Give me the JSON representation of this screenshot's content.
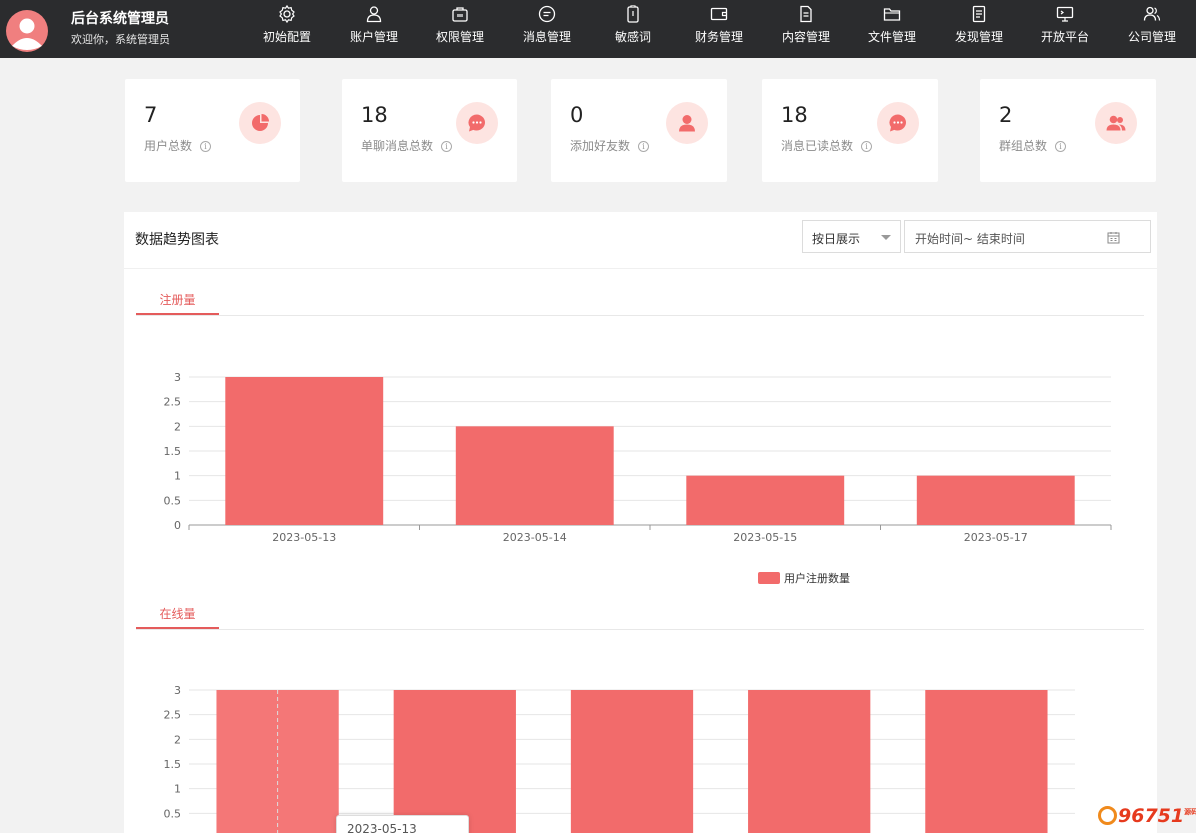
{
  "header": {
    "title": "后台系统管理员",
    "welcome": "欢迎你，系统管理员",
    "nav": [
      {
        "label": "初始配置",
        "icon": "gear-icon"
      },
      {
        "label": "账户管理",
        "icon": "user-icon"
      },
      {
        "label": "权限管理",
        "icon": "permission-icon"
      },
      {
        "label": "消息管理",
        "icon": "message-icon"
      },
      {
        "label": "敏感词",
        "icon": "clipboard-icon"
      },
      {
        "label": "财务管理",
        "icon": "wallet-icon"
      },
      {
        "label": "内容管理",
        "icon": "document-icon"
      },
      {
        "label": "文件管理",
        "icon": "folder-icon"
      },
      {
        "label": "发现管理",
        "icon": "file-list-icon"
      },
      {
        "label": "开放平台",
        "icon": "monitor-icon"
      },
      {
        "label": "公司管理",
        "icon": "users-icon"
      }
    ]
  },
  "stats": [
    {
      "value": "7",
      "label": "用户总数",
      "icon": "pie-chart-icon"
    },
    {
      "value": "18",
      "label": "单聊消息总数",
      "icon": "chat-bubble-icon"
    },
    {
      "value": "0",
      "label": "添加好友数",
      "icon": "person-icon"
    },
    {
      "value": "18",
      "label": "消息已读总数",
      "icon": "chat-bubble-icon"
    },
    {
      "value": "2",
      "label": "群组总数",
      "icon": "group-icon"
    }
  ],
  "panel": {
    "title": "数据趋势图表",
    "display_mode": "按日展示",
    "date_range_placeholder": "开始时间~ 结束时间"
  },
  "tabs": {
    "registrations": "注册量",
    "online": "在线量"
  },
  "colors": {
    "topbar": "#2b2c2e",
    "accent": "#e45b5b",
    "bar": "#f26b6b",
    "icon_bg": "#fde4e1"
  },
  "chart_data": [
    {
      "type": "bar",
      "categories": [
        "2023-05-13",
        "2023-05-14",
        "2023-05-15",
        "2023-05-17"
      ],
      "series": [
        {
          "name": "用户注册数量",
          "values": [
            3,
            2,
            1,
            1
          ]
        }
      ],
      "ylim": [
        0,
        3
      ],
      "yticks": [
        "0",
        "0.5",
        "1",
        "1.5",
        "2",
        "2.5",
        "3"
      ],
      "legend": "bottom-center",
      "grid": true
    },
    {
      "type": "bar",
      "categories": [
        "2023-05-13",
        "",
        "",
        "",
        ""
      ],
      "series": [
        {
          "values": [
            3,
            3,
            3,
            3,
            3
          ]
        }
      ],
      "ylim": [
        0,
        3
      ],
      "yticks": [
        "0.5",
        "1",
        "1.5",
        "2",
        "2.5",
        "3"
      ],
      "grid": true
    }
  ],
  "tooltip": {
    "text": "2023-05-13"
  },
  "watermark": {
    "text": "96751",
    "small": "源码"
  }
}
